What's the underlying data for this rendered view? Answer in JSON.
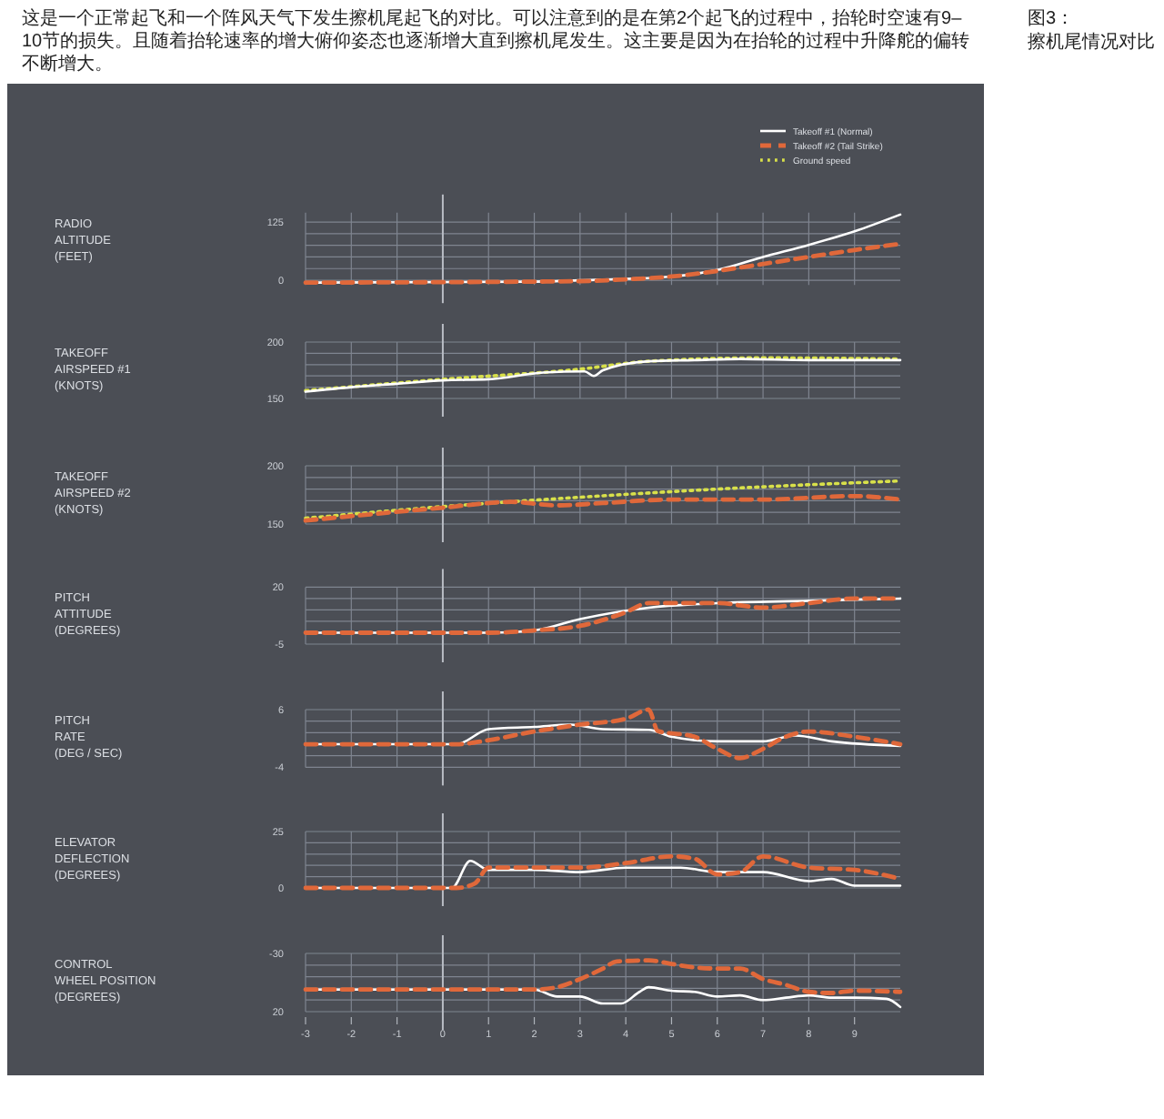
{
  "chart_data": [
    {
      "type": "line",
      "title": "这是一个正常起飞和一个阵风天气下发生擦机尾起飞的对比。可以注意到的是在第2个起飞的过程中，抬轮时空速有9–10节的损失。且随着抬轮速率的增大俯仰姿态也逐渐增大直到擦机尾发生。这主要是因为在抬轮的过程中升降舵的偏转不断增大。",
      "annotations": [
        "图3：",
        "擦机尾情况对比"
      ],
      "ylabel": "RADIO\nALTITUDE\n(FEET)",
      "legend": "top right",
      "grid": true,
      "tick_labels": "y",
      "xlim": [
        -3,
        10
      ],
      "xticks": [
        -3,
        -2,
        -1,
        0,
        1,
        2,
        3,
        4,
        5,
        6,
        7,
        8,
        9
      ],
      "ylim": [
        -10,
        145
      ],
      "yticks": [
        0,
        {
          "value": 25,
          "label": null
        },
        {
          "value": 50,
          "label": null
        },
        {
          "value": 75,
          "label": null
        },
        {
          "value": 100,
          "label": null
        },
        125
      ],
      "ref_lines": [
        {
          "axis": "x",
          "value": 0,
          "color": "#b8bcc4"
        }
      ],
      "series": [
        {
          "name": "Takeoff #1 (Normal)",
          "color": "#ffffff",
          "line_style": "solid",
          "x": [
            -3,
            2,
            3,
            4,
            5,
            5.6,
            6,
            7,
            8,
            9,
            10
          ],
          "values": [
            -5,
            -3,
            0,
            3,
            8,
            15,
            22,
            50,
            76,
            105,
            141
          ]
        },
        {
          "name": "Takeoff #2 (Tail Strike)",
          "color": "#e0683a",
          "line_style": "dashed",
          "x": [
            -3,
            3,
            4,
            5,
            6,
            7,
            8,
            9,
            10
          ],
          "values": [
            -5,
            -2,
            2,
            8,
            20,
            35,
            50,
            65,
            78
          ]
        }
      ]
    },
    {
      "type": "line",
      "ylabel": "TAKEOFF\nAIRSPEED #1\n(KNOTS)",
      "grid": true,
      "tick_labels": "y",
      "xlim": [
        -3,
        10
      ],
      "xticks": [
        -3,
        -2,
        -1,
        0,
        1,
        2,
        3,
        4,
        5,
        6,
        7,
        8,
        9
      ],
      "ylim": [
        150,
        200
      ],
      "yticks": [
        150,
        {
          "value": 160,
          "label": null
        },
        {
          "value": 170,
          "label": null
        },
        {
          "value": 180,
          "label": null
        },
        {
          "value": 190,
          "label": null
        },
        200
      ],
      "ref_lines": [
        {
          "axis": "x",
          "value": 0,
          "color": "#b8bcc4"
        }
      ],
      "series": [
        {
          "name": "Ground speed",
          "color": "#d8e04a",
          "line_style": "dotted",
          "x": [
            -3,
            0,
            3,
            4.5,
            7,
            10
          ],
          "values": [
            157,
            167,
            176,
            183,
            186,
            185
          ]
        },
        {
          "color": "#ffffff",
          "line_style": "solid",
          "x": [
            -3,
            -2,
            -1,
            0,
            1,
            2.2,
            3.1,
            3.3,
            3.5,
            4.5,
            5.5,
            6.5,
            8,
            10
          ],
          "values": [
            156,
            160,
            163,
            166,
            167,
            173,
            174,
            170,
            175,
            183,
            184,
            185,
            184,
            184
          ]
        }
      ]
    },
    {
      "type": "line",
      "ylabel": "TAKEOFF\nAIRSPEED #2\n(KNOTS)",
      "grid": true,
      "tick_labels": "y",
      "xlim": [
        -3,
        10
      ],
      "xticks": [
        -3,
        -2,
        -1,
        0,
        1,
        2,
        3,
        4,
        5,
        6,
        7,
        8,
        9
      ],
      "ylim": [
        150,
        200
      ],
      "yticks": [
        150,
        {
          "value": 160,
          "label": null
        },
        {
          "value": 170,
          "label": null
        },
        {
          "value": 180,
          "label": null
        },
        {
          "value": 190,
          "label": null
        },
        200
      ],
      "ref_lines": [
        {
          "axis": "x",
          "value": 0,
          "color": "#b8bcc4"
        }
      ],
      "series": [
        {
          "color": "#d8e04a",
          "line_style": "dotted",
          "x": [
            -3,
            0,
            3,
            6,
            10
          ],
          "values": [
            155,
            165,
            173,
            180,
            187
          ]
        },
        {
          "color": "#e0683a",
          "line_style": "dashed",
          "x": [
            -3,
            0,
            1.5,
            2.5,
            3.5,
            5,
            7,
            9,
            10
          ],
          "values": [
            153,
            164,
            169,
            166,
            168,
            171,
            171,
            174,
            171
          ]
        }
      ]
    },
    {
      "type": "line",
      "ylabel": "PITCH\nATTITUDE\n(DEGREES)",
      "grid": true,
      "tick_labels": "y",
      "xlim": [
        -3,
        10
      ],
      "xticks": [
        -3,
        -2,
        -1,
        0,
        1,
        2,
        3,
        4,
        5,
        6,
        7,
        8,
        9
      ],
      "ylim": [
        -5,
        20
      ],
      "yticks": [
        -5,
        {
          "value": 0,
          "label": null
        },
        {
          "value": 5,
          "label": null
        },
        {
          "value": 10,
          "label": null
        },
        {
          "value": 15,
          "label": null
        },
        20
      ],
      "ref_lines": [
        {
          "axis": "x",
          "value": 0,
          "color": "#b8bcc4"
        }
      ],
      "series": [
        {
          "color": "#ffffff",
          "line_style": "solid",
          "x": [
            -3,
            1,
            2,
            3,
            4.5,
            6,
            8,
            10
          ],
          "values": [
            0,
            0,
            1,
            6,
            11,
            13,
            14,
            15
          ]
        },
        {
          "color": "#e0683a",
          "line_style": "dashed",
          "x": [
            -3,
            1,
            2,
            3,
            4,
            4.5,
            6,
            7,
            8,
            9,
            10
          ],
          "values": [
            0,
            0,
            1,
            3,
            9,
            13,
            13,
            11,
            13,
            15,
            15
          ]
        }
      ]
    },
    {
      "type": "line",
      "ylabel": "PITCH\nRATE\n(DEG / SEC)",
      "grid": true,
      "tick_labels": "y",
      "xlim": [
        -3,
        10
      ],
      "xticks": [
        -3,
        -2,
        -1,
        0,
        1,
        2,
        3,
        4,
        5,
        6,
        7,
        8,
        9
      ],
      "ylim": [
        -4,
        6
      ],
      "yticks": [
        -4,
        {
          "value": -2,
          "label": null
        },
        {
          "value": 0,
          "label": null
        },
        {
          "value": 2,
          "label": null
        },
        {
          "value": 4,
          "label": null
        },
        6
      ],
      "ref_lines": [
        {
          "axis": "x",
          "value": 0,
          "color": "#b8bcc4"
        }
      ],
      "series": [
        {
          "color": "#ffffff",
          "line_style": "solid",
          "x": [
            -3,
            0.3,
            1,
            2,
            2.8,
            3.5,
            4.5,
            5,
            6,
            7,
            7.7,
            8.5,
            10
          ],
          "values": [
            0,
            0,
            2.6,
            3,
            3.4,
            2.6,
            2.5,
            1.3,
            0.5,
            0.5,
            1.5,
            0.5,
            -0.3
          ]
        },
        {
          "color": "#e0683a",
          "line_style": "dashed",
          "x": [
            -3,
            0.3,
            1,
            2,
            3,
            4,
            4.5,
            4.7,
            5.5,
            6,
            6.5,
            7,
            7.5,
            8,
            9,
            10
          ],
          "values": [
            0,
            0,
            0.7,
            2.2,
            3.4,
            4.4,
            6,
            2.3,
            1.3,
            -0.8,
            -2.4,
            -0.8,
            1.3,
            2.2,
            1.3,
            0
          ]
        }
      ]
    },
    {
      "type": "line",
      "ylabel": "ELEVATOR\nDEFLECTION\n(DEGREES)",
      "grid": true,
      "tick_labels": "y",
      "xlim": [
        -3,
        10
      ],
      "xticks": [
        -3,
        -2,
        -1,
        0,
        1,
        2,
        3,
        4,
        5,
        6,
        7,
        8,
        9
      ],
      "ylim": [
        0,
        25
      ],
      "yticks": [
        0,
        {
          "value": 5,
          "label": null
        },
        {
          "value": 10,
          "label": null
        },
        {
          "value": 15,
          "label": null
        },
        {
          "value": 20,
          "label": null
        },
        25
      ],
      "ref_lines": [
        {
          "axis": "x",
          "value": 0,
          "color": "#b8bcc4"
        }
      ],
      "series": [
        {
          "color": "#ffffff",
          "line_style": "solid",
          "x": [
            -3,
            0.2,
            0.6,
            1,
            2,
            3,
            4,
            4.5,
            5.2,
            6,
            7,
            8,
            8.5,
            9,
            10
          ],
          "values": [
            0,
            0,
            12,
            8,
            8,
            7,
            9,
            9,
            9,
            7,
            7,
            3,
            4,
            1,
            1
          ]
        },
        {
          "color": "#e0683a",
          "line_style": "dashed",
          "x": [
            -3,
            0.3,
            0.7,
            1,
            2,
            3,
            4,
            5,
            5.5,
            6,
            6.5,
            7,
            8,
            9,
            10
          ],
          "values": [
            0,
            0,
            2,
            9,
            9,
            9,
            11,
            14,
            13,
            6,
            7,
            14,
            9,
            8,
            4
          ]
        }
      ]
    },
    {
      "type": "line",
      "ylabel": "CONTROL\nWHEEL POSITION\n(DEGREES)",
      "grid": true,
      "xlim": [
        -3,
        10
      ],
      "xticks": [
        -3,
        -2,
        -1,
        0,
        1,
        2,
        3,
        4,
        5,
        6,
        7,
        8,
        9
      ],
      "ylim": [
        20,
        -30
      ],
      "yticks": [
        -30,
        {
          "value": -20,
          "label": null
        },
        {
          "value": -10,
          "label": null
        },
        {
          "value": 0,
          "label": null
        },
        {
          "value": 10,
          "label": null
        },
        20
      ],
      "ref_lines": [
        {
          "axis": "x",
          "value": 0,
          "color": "#b8bcc4"
        }
      ],
      "series": [
        {
          "color": "#ffffff",
          "line_style": "solid",
          "x": [
            -3,
            2,
            2.5,
            3,
            3.5,
            3.9,
            4.3,
            4.5,
            5,
            5.5,
            6,
            6.5,
            7,
            7.5,
            8,
            8.5,
            9,
            9.7,
            10
          ],
          "values": [
            1,
            1,
            7,
            7,
            13,
            13,
            3,
            -1,
            2,
            3,
            7,
            6,
            10,
            8,
            6,
            8,
            8,
            9,
            16
          ]
        },
        {
          "color": "#e0683a",
          "line_style": "dashed",
          "x": [
            -3,
            2,
            2.5,
            3,
            3.5,
            3.8,
            4.5,
            5,
            5.5,
            6,
            6.5,
            7,
            7.5,
            8,
            8.5,
            9,
            10
          ],
          "values": [
            1,
            1,
            -1,
            -8,
            -17,
            -23,
            -24,
            -21,
            -18,
            -17,
            -17,
            -8,
            -3,
            3,
            4,
            2,
            3
          ]
        }
      ]
    }
  ]
}
